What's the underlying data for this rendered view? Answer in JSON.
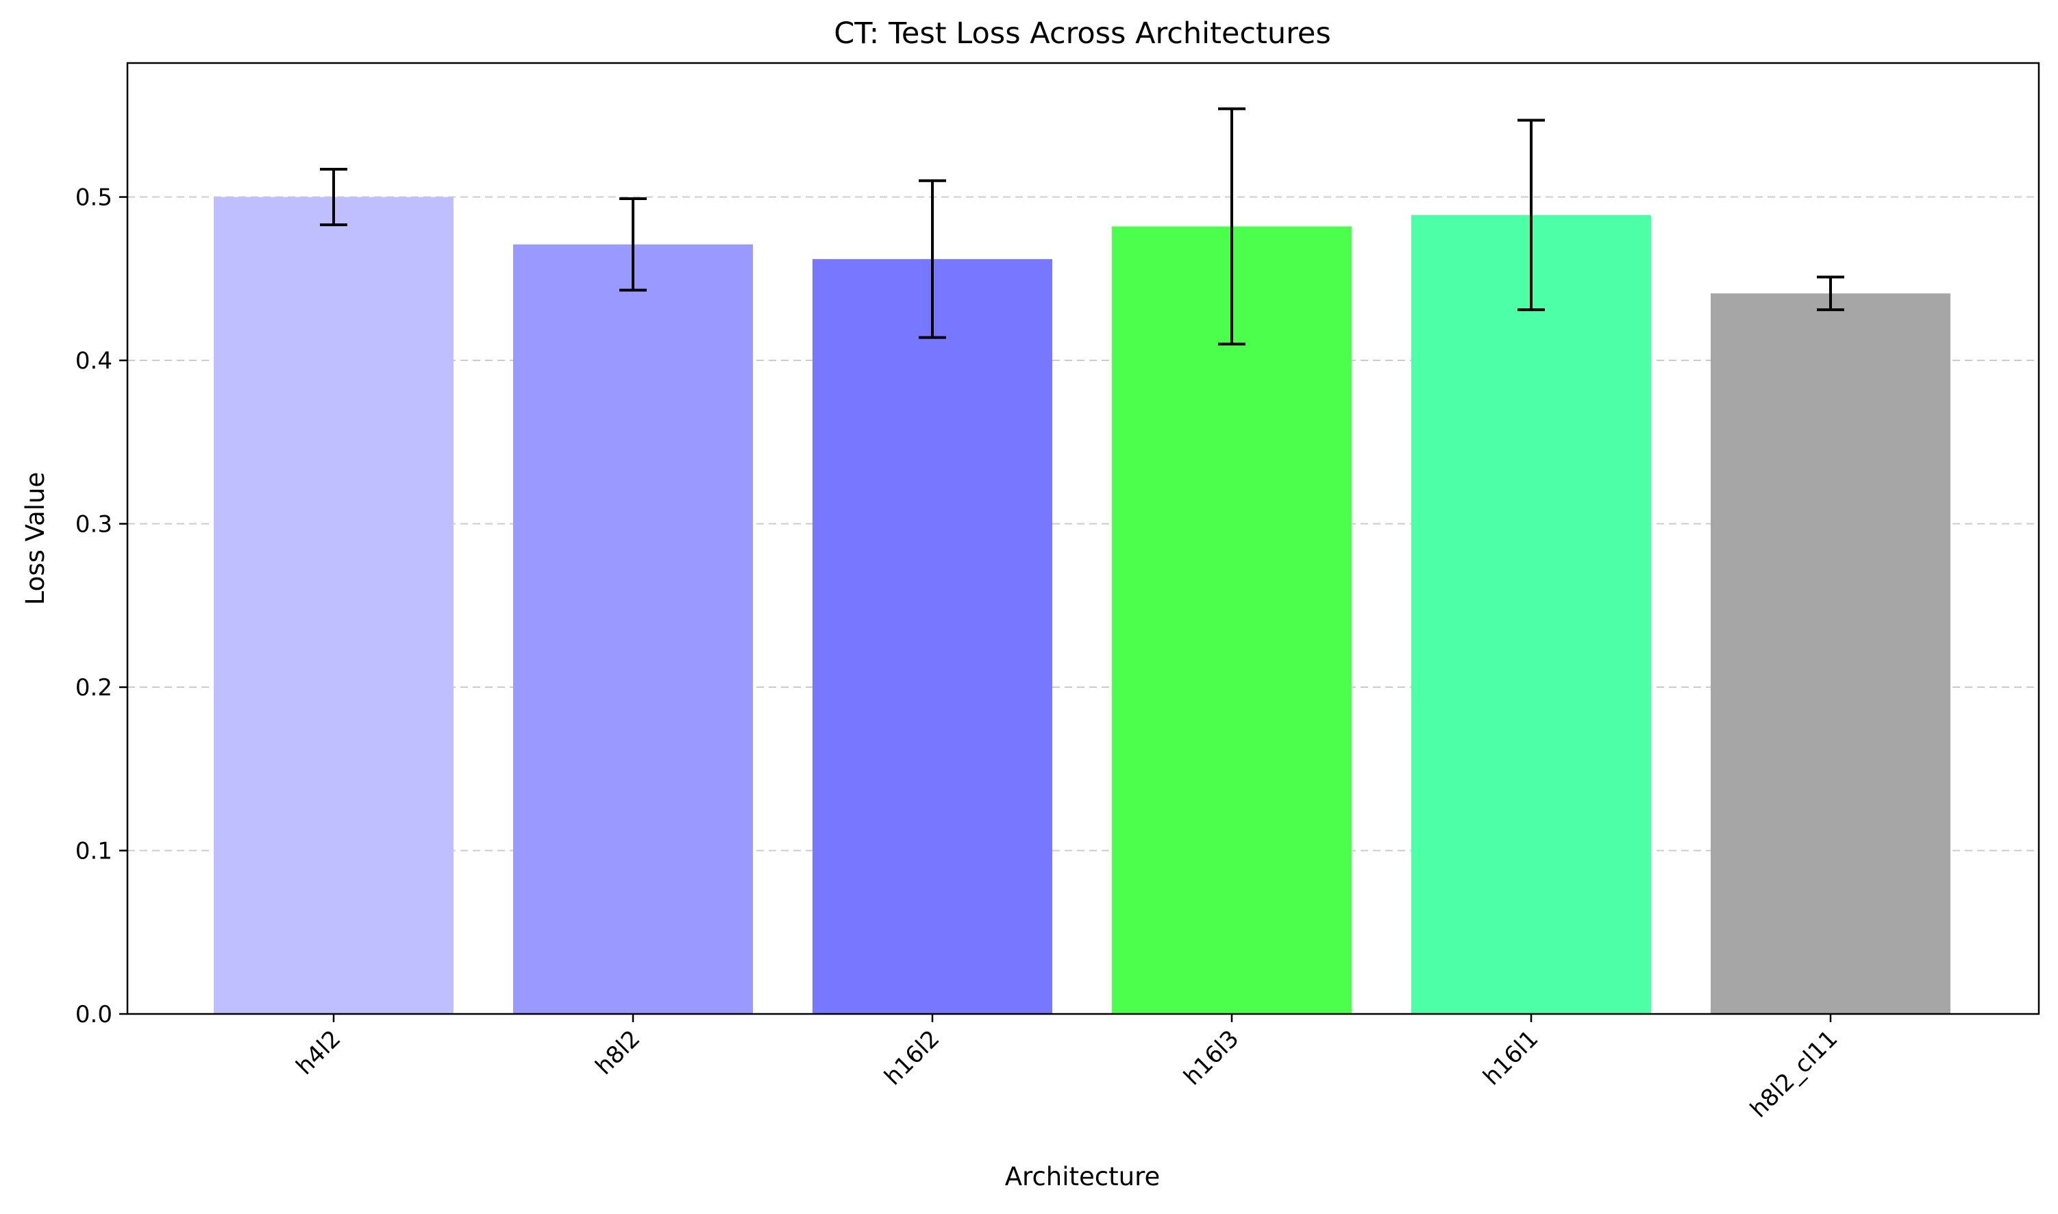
{
  "chart_data": {
    "type": "bar",
    "title": "CT: Test Loss Across Architectures",
    "xlabel": "Architecture",
    "ylabel": "Loss Value",
    "categories": [
      "h4l2",
      "h8l2",
      "h16l2",
      "h16l3",
      "h16l1",
      "h8l2_cl11"
    ],
    "values": [
      0.5,
      0.471,
      0.462,
      0.482,
      0.489,
      0.441
    ],
    "errors": [
      0.017,
      0.028,
      0.048,
      0.072,
      0.058,
      0.01
    ],
    "colors": [
      "#bfbfff",
      "#9999ff",
      "#7777ff",
      "#4dff4d",
      "#4dffa6",
      "#a6a6a6"
    ],
    "ylim": [
      0.0,
      0.582
    ],
    "yticks": [
      0.0,
      0.1,
      0.2,
      0.3,
      0.4,
      0.5
    ],
    "ytick_labels": [
      "0.0",
      "0.1",
      "0.2",
      "0.3",
      "0.4",
      "0.5"
    ],
    "grid": "y, dashed"
  }
}
